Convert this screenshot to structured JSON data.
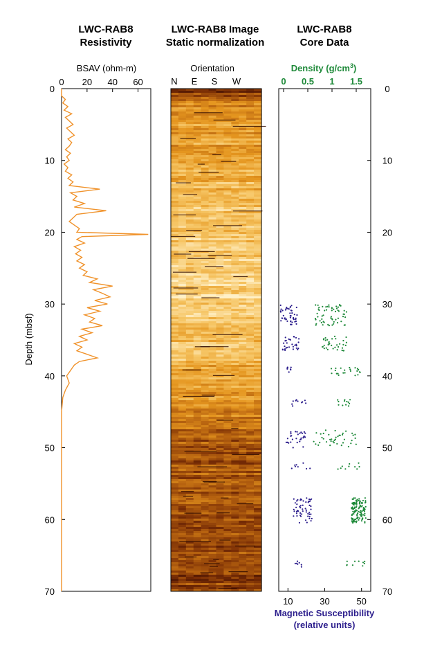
{
  "panels": {
    "resistivity": {
      "title_line1": "LWC-RAB8",
      "title_line2": "Resistivity",
      "axis_label": "BSAV (ohm-m)",
      "axis_color": "#000000",
      "curve_color": "#f0922a"
    },
    "image": {
      "title_line1": "LWC-RAB8 Image",
      "title_line2": "Static normalization",
      "axis_label": "Orientation",
      "orientation_labels": [
        "N",
        "E",
        "S",
        "W"
      ]
    },
    "core": {
      "title_line1": "LWC-RAB8",
      "title_line2": "Core Data",
      "density_label": "Density (g/cm",
      "density_sup": "3",
      "density_close": ")",
      "density_color": "#1f8a3a",
      "ms_label_line1": "Magnetic Susceptibility",
      "ms_label_line2": "(relative units)",
      "ms_color": "#2b1d8c"
    }
  },
  "depth_axis": {
    "label": "Depth (mbsf)",
    "ticks": [
      "0",
      "10",
      "20",
      "30",
      "40",
      "50",
      "60",
      "70"
    ],
    "range": [
      0,
      70
    ]
  },
  "chart_data": [
    {
      "type": "line",
      "title": "LWC-RAB8 Resistivity",
      "xlabel": "BSAV (ohm-m)",
      "ylabel": "Depth (mbsf)",
      "xlim": [
        0,
        70
      ],
      "xticks": [
        "0",
        "20",
        "40",
        "60"
      ],
      "ylim": [
        70,
        0
      ],
      "series": [
        {
          "depth": [
            0,
            1,
            1.5,
            2,
            2.5,
            3,
            3.5,
            4,
            4.5,
            5,
            5.5,
            6,
            6.5,
            7,
            7.5,
            8,
            8.5,
            9,
            9.5,
            10,
            10.5,
            11,
            11.5,
            12,
            12.5,
            13,
            13.5,
            14,
            14.5,
            15,
            15.5,
            16,
            16.5,
            17,
            17.5,
            18,
            18.5,
            19,
            19.5,
            20,
            20.3,
            20.6,
            21,
            21.5,
            22,
            22.5,
            23,
            23.5,
            24,
            24.5,
            25,
            25.5,
            26,
            26.5,
            27,
            27.5,
            28,
            28.5,
            29,
            29.5,
            30,
            30.5,
            31,
            31.5,
            32,
            32.5,
            33,
            33.5,
            34,
            34.5,
            35,
            35.5,
            36,
            36.5,
            37,
            37.5,
            38,
            38.5,
            39,
            39.5,
            40,
            41,
            42,
            43,
            45,
            50,
            55,
            60,
            65,
            70
          ],
          "values": [
            0,
            0,
            3,
            1,
            5,
            2,
            8,
            3,
            6,
            9,
            4,
            7,
            10,
            5,
            8,
            6,
            3,
            7,
            4,
            6,
            2,
            5,
            3,
            8,
            5,
            9,
            6,
            30,
            7,
            12,
            9,
            18,
            10,
            35,
            12,
            9,
            6,
            10,
            14,
            12,
            68,
            16,
            12,
            18,
            10,
            15,
            11,
            16,
            12,
            18,
            14,
            20,
            17,
            28,
            22,
            40,
            25,
            32,
            38,
            26,
            36,
            20,
            30,
            18,
            26,
            22,
            32,
            16,
            24,
            14,
            20,
            10,
            16,
            12,
            20,
            28,
            14,
            10,
            8,
            6,
            4,
            6,
            3,
            1,
            0,
            0,
            0,
            0,
            0,
            0
          ]
        }
      ]
    },
    {
      "type": "heatmap",
      "title": "LWC-RAB8 Image Static normalization",
      "xlabel": "Orientation",
      "categories": [
        "N",
        "E",
        "S",
        "W"
      ],
      "ylim": [
        70,
        0
      ],
      "palette": [
        "#3d0c02",
        "#7a2e05",
        "#b86410",
        "#e5961f",
        "#f6c564",
        "#fff0c8"
      ],
      "brightness_profile": {
        "depth": [
          0,
          1,
          2,
          5,
          10,
          15,
          18,
          20,
          25,
          28,
          30,
          35,
          40,
          44,
          47,
          50,
          55,
          60,
          65,
          70
        ],
        "level": [
          0.15,
          0.35,
          0.55,
          0.62,
          0.66,
          0.72,
          0.85,
          0.8,
          0.86,
          0.9,
          0.82,
          0.78,
          0.68,
          0.58,
          0.42,
          0.34,
          0.36,
          0.32,
          0.3,
          0.26
        ]
      }
    },
    {
      "type": "scatter",
      "title": "LWC-RAB8 Core Data",
      "ylim": [
        70,
        0
      ],
      "series": [
        {
          "name": "Density (g/cm3)",
          "xlim": [
            -0.1,
            1.8
          ],
          "xticks": [
            "0",
            "0.5",
            "1",
            "1.5"
          ],
          "clusters": [
            {
              "depth_range": [
                30,
                33
              ],
              "value_range": [
                0.6,
                1.3
              ],
              "count": 60
            },
            {
              "depth_range": [
                34.5,
                36.5
              ],
              "value_range": [
                0.8,
                1.3
              ],
              "count": 35
            },
            {
              "depth_range": [
                38.8,
                40
              ],
              "value_range": [
                0.9,
                1.6
              ],
              "count": 22
            },
            {
              "depth_range": [
                43.3,
                44.2
              ],
              "value_range": [
                1.1,
                1.4
              ],
              "count": 12
            },
            {
              "depth_range": [
                47.5,
                50
              ],
              "value_range": [
                0.6,
                1.5
              ],
              "count": 40
            },
            {
              "depth_range": [
                52,
                53
              ],
              "value_range": [
                1.1,
                1.6
              ],
              "count": 10
            },
            {
              "depth_range": [
                57,
                60.5
              ],
              "value_range": [
                1.4,
                1.7
              ],
              "count": 120
            },
            {
              "depth_range": [
                65.8,
                66.5
              ],
              "value_range": [
                1.3,
                1.7
              ],
              "count": 10
            }
          ]
        },
        {
          "name": "Magnetic Susceptibility (relative units)",
          "xlim": [
            5,
            55
          ],
          "xticks": [
            "10",
            "30",
            "50"
          ],
          "clusters": [
            {
              "depth_range": [
                30,
                33
              ],
              "value_range": [
                6,
                15
              ],
              "count": 45
            },
            {
              "depth_range": [
                34.5,
                36.5
              ],
              "value_range": [
                7,
                16
              ],
              "count": 30
            },
            {
              "depth_range": [
                38.8,
                39.5
              ],
              "value_range": [
                9,
                12
              ],
              "count": 8
            },
            {
              "depth_range": [
                43.3,
                44.2
              ],
              "value_range": [
                12,
                20
              ],
              "count": 10
            },
            {
              "depth_range": [
                47.5,
                50
              ],
              "value_range": [
                9,
                20
              ],
              "count": 30
            },
            {
              "depth_range": [
                52,
                53
              ],
              "value_range": [
                12,
                22
              ],
              "count": 8
            },
            {
              "depth_range": [
                57,
                60.5
              ],
              "value_range": [
                13,
                23
              ],
              "count": 55
            },
            {
              "depth_range": [
                65.8,
                66.8
              ],
              "value_range": [
                14,
                18
              ],
              "count": 7
            }
          ]
        }
      ]
    }
  ]
}
